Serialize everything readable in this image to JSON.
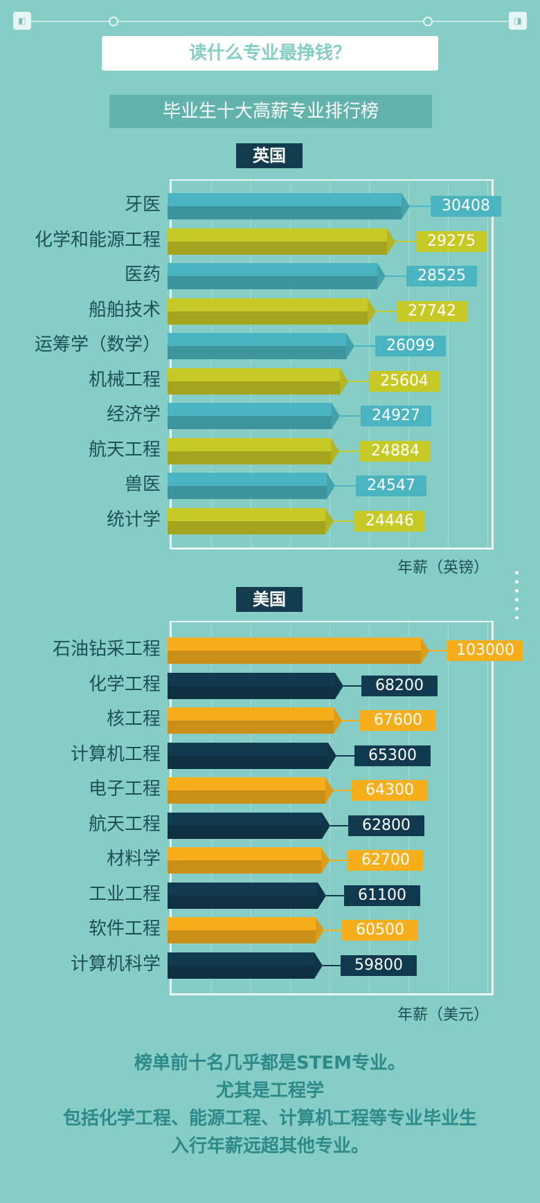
{
  "header": {
    "headline": "读什么专业最挣钱？",
    "subtitle": "毕业生十大高薪专业排行榜"
  },
  "chart_data": [
    {
      "type": "bar",
      "orientation": "horizontal",
      "title": "英国",
      "xlabel": "年薪（英镑）",
      "categories": [
        "牙医",
        "化学和能源工程",
        "医药",
        "船舶技术",
        "运筹学（数学）",
        "机械工程",
        "经济学",
        "航天工程",
        "兽医",
        "统计学"
      ],
      "values": [
        30408,
        29275,
        28525,
        27742,
        26099,
        25604,
        24927,
        24884,
        24547,
        24446
      ],
      "value_labels": [
        "30408",
        "29275",
        "28525",
        "27742",
        "26099",
        "25604",
        "24927",
        "24884",
        "24547",
        "24446"
      ],
      "colors": [
        "#4ab5c0",
        "#c7c926"
      ]
    },
    {
      "type": "bar",
      "orientation": "horizontal",
      "title": "美国",
      "xlabel": "年薪（美元）",
      "categories": [
        "石油钻采工程",
        "化学工程",
        "核工程",
        "计算机工程",
        "电子工程",
        "航天工程",
        "材料学",
        "工业工程",
        "软件工程",
        "计算机科学"
      ],
      "values": [
        103000,
        68200,
        67600,
        65300,
        64300,
        62800,
        62700,
        61100,
        60500,
        59800
      ],
      "value_labels": [
        "103000",
        "68200",
        "67600",
        "65300",
        "64300",
        "62800",
        "62700",
        "61100",
        "60500",
        "59800"
      ],
      "colors": [
        "#f6ae1c",
        "#113a4f"
      ]
    }
  ],
  "footer": {
    "lines": [
      "榜单前十名几乎都是STEM专业。",
      "尤其是工程学",
      "包括化学工程、能源工程、计算机工程等专业毕业生",
      "入行年薪远超其他专业。"
    ]
  }
}
